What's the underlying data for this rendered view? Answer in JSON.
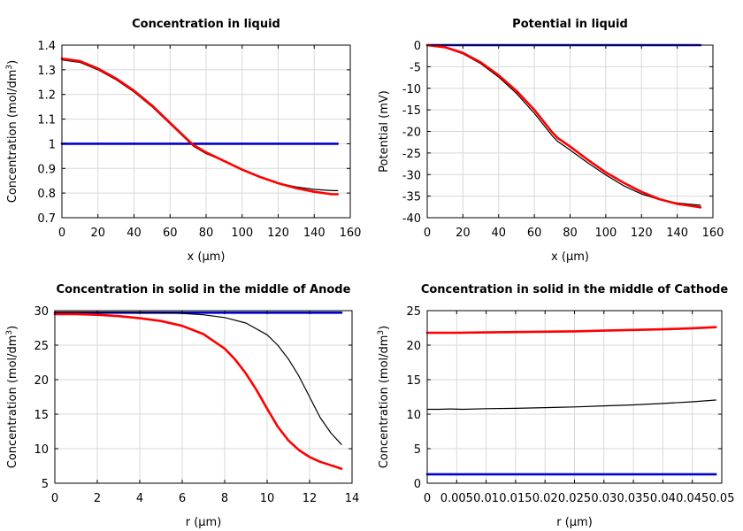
{
  "chart_data": [
    {
      "type": "line",
      "title": "Concentration in liquid",
      "xlabel": "x (µm)",
      "ylabel": "Concentration (mol/dm³)",
      "xlim": [
        0,
        160
      ],
      "ylim": [
        0.7,
        1.4
      ],
      "xticks": [
        "0",
        "20",
        "40",
        "60",
        "80",
        "100",
        "120",
        "140",
        "160"
      ],
      "yticks": [
        "0.7",
        "0.8",
        "0.9",
        "1",
        "1.1",
        "1.2",
        "1.3",
        "1.4"
      ],
      "grid": true,
      "series": [
        {
          "color": "#0000cc",
          "x": [
            0,
            153
          ],
          "y": [
            1.0,
            1.0
          ]
        },
        {
          "color": "#000000",
          "x": [
            0,
            10,
            20,
            30,
            40,
            50,
            60,
            70,
            73,
            80,
            90,
            100,
            110,
            120,
            130,
            140,
            150,
            153
          ],
          "y": [
            1.34,
            1.33,
            1.3,
            1.26,
            1.21,
            1.15,
            1.08,
            1.01,
            0.99,
            0.96,
            0.93,
            0.895,
            0.865,
            0.84,
            0.825,
            0.815,
            0.81,
            0.81
          ]
        },
        {
          "color": "#ff0000",
          "x": [
            0,
            10,
            20,
            30,
            40,
            50,
            60,
            70,
            73,
            80,
            90,
            100,
            110,
            120,
            130,
            140,
            150,
            153
          ],
          "y": [
            1.345,
            1.335,
            1.305,
            1.265,
            1.215,
            1.155,
            1.085,
            1.015,
            0.995,
            0.965,
            0.93,
            0.895,
            0.865,
            0.84,
            0.82,
            0.805,
            0.795,
            0.795
          ]
        }
      ]
    },
    {
      "type": "line",
      "title": "Potential in liquid",
      "xlabel": "x (µm)",
      "ylabel": "Potential (mV)",
      "xlim": [
        0,
        160
      ],
      "ylim": [
        -40,
        0
      ],
      "xticks": [
        "0",
        "20",
        "40",
        "60",
        "80",
        "100",
        "120",
        "140",
        "160"
      ],
      "yticks": [
        "-40",
        "-35",
        "-30",
        "-25",
        "-20",
        "-15",
        "-10",
        "-5",
        "0"
      ],
      "grid": true,
      "series": [
        {
          "color": "#0000cc",
          "x": [
            0,
            153
          ],
          "y": [
            0,
            0
          ]
        },
        {
          "color": "#000000",
          "x": [
            0,
            10,
            20,
            30,
            40,
            50,
            60,
            70,
            73,
            80,
            90,
            100,
            110,
            120,
            130,
            140,
            150,
            153
          ],
          "y": [
            0,
            -0.6,
            -2.0,
            -4.3,
            -7.4,
            -11.2,
            -15.8,
            -21.0,
            -22.3,
            -24.3,
            -27.3,
            -30.1,
            -32.6,
            -34.5,
            -35.8,
            -36.6,
            -37.0,
            -37.1
          ]
        },
        {
          "color": "#ff0000",
          "x": [
            0,
            10,
            20,
            30,
            40,
            50,
            60,
            70,
            73,
            80,
            90,
            100,
            110,
            120,
            130,
            140,
            150,
            153
          ],
          "y": [
            0,
            -0.5,
            -1.8,
            -4.0,
            -7.0,
            -10.6,
            -15.0,
            -20.2,
            -21.5,
            -23.5,
            -26.6,
            -29.5,
            -31.9,
            -34.0,
            -35.7,
            -36.8,
            -37.4,
            -37.6
          ]
        }
      ]
    },
    {
      "type": "line",
      "title": "Concentration in solid in the middle of Anode",
      "xlabel": "r (µm)",
      "ylabel": "Concentration (mol/dm³)",
      "xlim": [
        0,
        14
      ],
      "ylim": [
        5,
        30
      ],
      "xticks": [
        "0",
        "2",
        "4",
        "6",
        "8",
        "10",
        "12",
        "14"
      ],
      "yticks": [
        "5",
        "10",
        "15",
        "20",
        "25",
        "30"
      ],
      "grid": true,
      "series": [
        {
          "color": "#0000cc",
          "x": [
            0,
            13.5
          ],
          "y": [
            29.7,
            29.7
          ]
        },
        {
          "color": "#000000",
          "x": [
            0,
            2,
            4,
            5,
            6,
            7,
            8,
            9,
            10,
            10.5,
            11,
            11.5,
            12,
            12.5,
            13,
            13.5
          ],
          "y": [
            29.8,
            29.8,
            29.75,
            29.7,
            29.6,
            29.4,
            29.0,
            28.2,
            26.5,
            25.0,
            23.0,
            20.5,
            17.5,
            14.5,
            12.3,
            10.6
          ]
        },
        {
          "color": "#ff0000",
          "x": [
            0,
            1,
            2,
            3,
            4,
            5,
            6,
            7,
            8,
            8.5,
            9,
            9.5,
            10,
            10.5,
            11,
            11.5,
            12,
            12.5,
            13,
            13.5
          ],
          "y": [
            29.5,
            29.5,
            29.4,
            29.2,
            28.9,
            28.5,
            27.8,
            26.6,
            24.5,
            22.9,
            20.9,
            18.5,
            15.8,
            13.2,
            11.2,
            9.8,
            8.8,
            8.1,
            7.6,
            7.1
          ]
        }
      ]
    },
    {
      "type": "line",
      "title": "Concentration in solid in the middle of Cathode",
      "xlabel": "r (µm)",
      "ylabel": "Concentration (mol/dm³)",
      "xlim": [
        0,
        0.05
      ],
      "ylim": [
        0,
        25
      ],
      "xticks": [
        "0",
        "0.005",
        "0.01",
        "0.015",
        "0.02",
        "0.025",
        "0.03",
        "0.035",
        "0.04",
        "0.045",
        "0.05"
      ],
      "yticks": [
        "0",
        "5",
        "10",
        "15",
        "20",
        "25"
      ],
      "grid": true,
      "series": [
        {
          "color": "#0000cc",
          "x": [
            0,
            0.049
          ],
          "y": [
            1.3,
            1.3
          ]
        },
        {
          "color": "#000000",
          "x": [
            0,
            0.002,
            0.004,
            0.006,
            0.01,
            0.015,
            0.02,
            0.025,
            0.03,
            0.035,
            0.04,
            0.045,
            0.049
          ],
          "y": [
            10.7,
            10.7,
            10.75,
            10.7,
            10.8,
            10.85,
            10.95,
            11.05,
            11.2,
            11.35,
            11.55,
            11.8,
            12.05
          ]
        },
        {
          "color": "#ff0000",
          "x": [
            0,
            0.005,
            0.01,
            0.015,
            0.02,
            0.025,
            0.03,
            0.035,
            0.04,
            0.045,
            0.049
          ],
          "y": [
            21.8,
            21.8,
            21.85,
            21.9,
            21.95,
            22.0,
            22.1,
            22.2,
            22.3,
            22.45,
            22.6
          ]
        }
      ]
    }
  ]
}
